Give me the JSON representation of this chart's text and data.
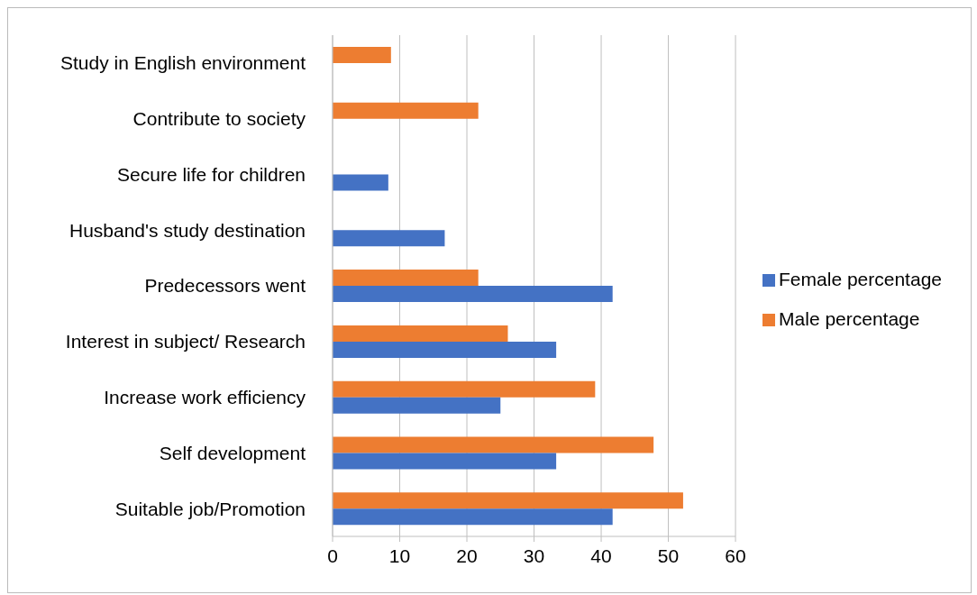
{
  "chart_data": {
    "type": "bar",
    "orientation": "horizontal",
    "categories": [
      "Study in English environment",
      "Contribute to society",
      "Secure life for children",
      "Husband's study destination",
      "Predecessors went",
      "Interest in subject/ Research",
      "Increase work efficiency",
      "Self development",
      "Suitable job/Promotion"
    ],
    "series": [
      {
        "name": "Male percentage",
        "color": "#ed7d31",
        "values": [
          8.7,
          21.7,
          null,
          null,
          21.7,
          26.1,
          39.1,
          47.8,
          52.2
        ]
      },
      {
        "name": "Female percentage",
        "color": "#4472c4",
        "values": [
          null,
          null,
          8.3,
          16.7,
          41.7,
          33.3,
          25,
          33.3,
          41.7
        ]
      }
    ],
    "xlim": [
      0,
      60
    ],
    "xticks": [
      0,
      10,
      20,
      30,
      40,
      50,
      60
    ],
    "grid": "x",
    "legend": "right"
  }
}
